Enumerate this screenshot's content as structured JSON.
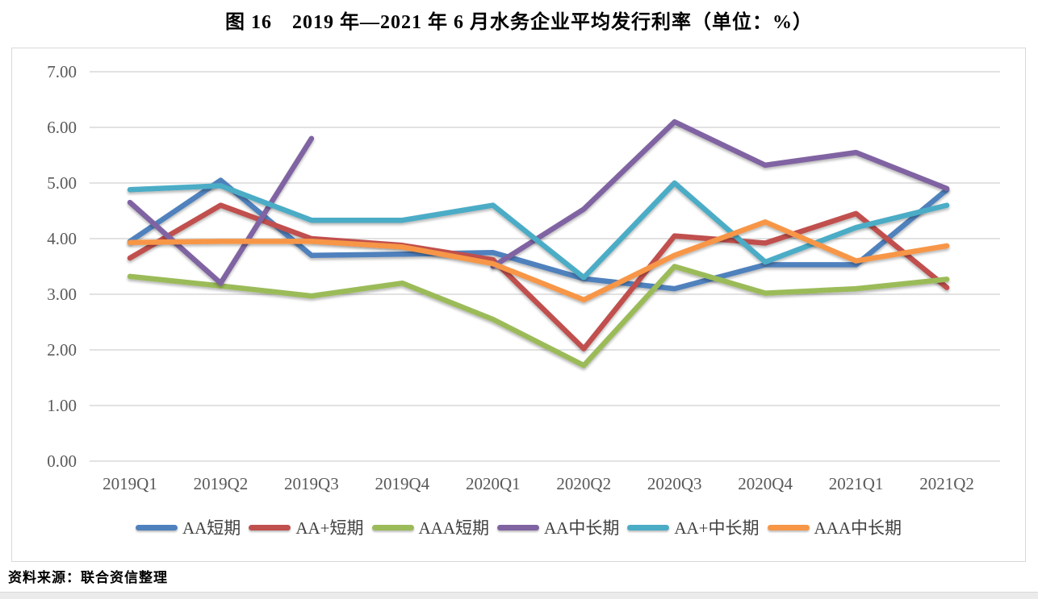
{
  "page": {
    "title": "图 16　2019 年—2021 年 6 月水务企业平均发行利率（单位：%）",
    "source": "资料来源：联合资信整理"
  },
  "chart_data": {
    "type": "line",
    "title": "图 16　2019 年—2021 年 6 月水务企业平均发行利率（单位：%）",
    "unit": "%",
    "categories": [
      "2019Q1",
      "2019Q2",
      "2019Q3",
      "2019Q4",
      "2020Q1",
      "2020Q2",
      "2020Q3",
      "2020Q4",
      "2021Q1",
      "2021Q2"
    ],
    "series": [
      {
        "name": "AA短期",
        "color": "#4F81BD",
        "values": [
          3.95,
          5.05,
          3.7,
          3.72,
          3.75,
          3.28,
          3.1,
          3.53,
          3.53,
          4.88
        ]
      },
      {
        "name": "AA+短期",
        "color": "#C0504D",
        "values": [
          3.65,
          4.6,
          4.0,
          3.88,
          3.62,
          2.02,
          4.05,
          3.92,
          4.45,
          3.12
        ]
      },
      {
        "name": "AAA短期",
        "color": "#9BBB59",
        "values": [
          3.32,
          3.15,
          2.97,
          3.2,
          2.55,
          1.72,
          3.5,
          3.02,
          3.1,
          3.27
        ]
      },
      {
        "name": "AA中长期",
        "color": "#8064A2",
        "values": [
          4.65,
          3.2,
          5.8,
          null,
          3.5,
          4.53,
          6.1,
          5.32,
          5.55,
          4.9
        ]
      },
      {
        "name": "AA+中长期",
        "color": "#4BACC6",
        "values": [
          4.88,
          4.95,
          4.33,
          4.33,
          4.6,
          3.3,
          5.0,
          3.58,
          4.2,
          4.6
        ]
      },
      {
        "name": "AAA中长期",
        "color": "#F79646",
        "values": [
          3.93,
          3.95,
          3.95,
          3.85,
          3.55,
          2.9,
          3.7,
          4.3,
          3.6,
          3.87
        ]
      }
    ],
    "ylim": [
      0,
      7
    ],
    "ytick_step": 1,
    "ytick_labels": [
      "0.00",
      "1.00",
      "2.00",
      "3.00",
      "4.00",
      "5.00",
      "6.00",
      "7.00"
    ],
    "grid": true,
    "gridline_color": "#d9d9d9",
    "legend_position": "bottom"
  }
}
